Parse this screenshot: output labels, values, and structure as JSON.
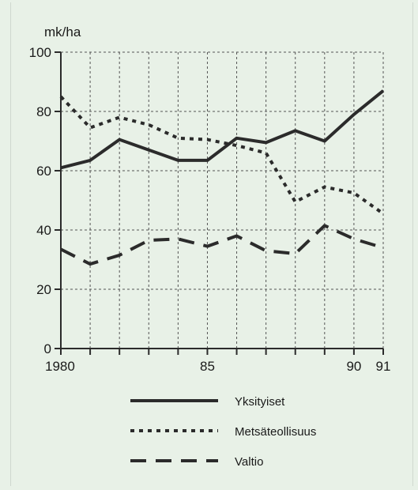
{
  "colors": {
    "background": "#e8f1e7",
    "line": "#2b2b2b",
    "grid": "#555555"
  },
  "chart_data": {
    "type": "line",
    "ylabel": "mk/ha",
    "xlabel": "",
    "xlim": [
      1980,
      1991
    ],
    "ylim": [
      0,
      100
    ],
    "y_ticks": [
      0,
      20,
      40,
      60,
      80,
      100
    ],
    "x_tick_values": [
      1980,
      1985,
      1990,
      1991
    ],
    "x_tick_labels": [
      "1980",
      "85",
      "90",
      "91"
    ],
    "grid": true,
    "legend_position": "bottom",
    "x": [
      1980,
      1981,
      1982,
      1983,
      1984,
      1985,
      1986,
      1987,
      1988,
      1989,
      1990,
      1991
    ],
    "series": [
      {
        "name": "Yksityiset",
        "style": "solid",
        "values": [
          61,
          63.5,
          70.5,
          67,
          63.5,
          63.5,
          71,
          69.5,
          73.5,
          70,
          79,
          87
        ]
      },
      {
        "name": "Metsäteollisuus",
        "style": "dotted",
        "values": [
          85,
          74.5,
          78,
          75.5,
          71,
          70.5,
          68.5,
          66,
          49.5,
          54.5,
          52.5,
          45.5
        ]
      },
      {
        "name": "Valtio",
        "style": "dashed",
        "values": [
          33.5,
          28.5,
          31.5,
          36.5,
          37,
          34.5,
          38,
          33,
          32,
          41.5,
          37,
          34
        ]
      }
    ]
  }
}
